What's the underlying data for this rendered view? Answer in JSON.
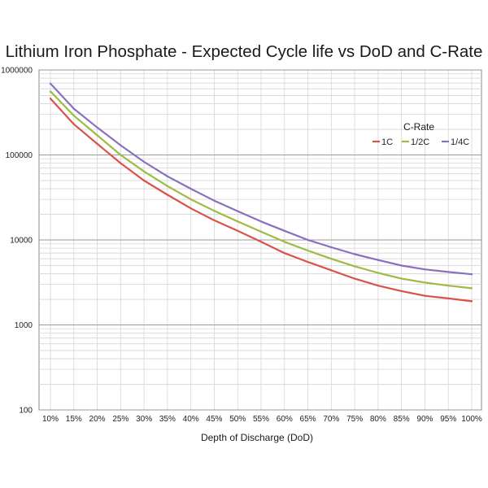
{
  "chart_data": {
    "type": "line",
    "title": "Lithium Iron Phosphate - Expected Cycle life vs DoD and C-Rate",
    "xlabel": "Depth of Discharge (DoD)",
    "ylabel": "",
    "yscale": "log",
    "ylim": [
      100,
      1000000
    ],
    "y_ticks": [
      {
        "value": 100,
        "label": "100"
      },
      {
        "value": 1000,
        "label": "1000"
      },
      {
        "value": 10000,
        "label": "10000"
      },
      {
        "value": 100000,
        "label": "100000"
      },
      {
        "value": 1000000,
        "label": "1000000"
      }
    ],
    "categories": [
      "10%",
      "15%",
      "20%",
      "25%",
      "30%",
      "35%",
      "40%",
      "45%",
      "50%",
      "55%",
      "60%",
      "65%",
      "70%",
      "75%",
      "80%",
      "85%",
      "90%",
      "95%",
      "100%"
    ],
    "legend": {
      "title": "C-Rate",
      "position": "top-right"
    },
    "grid": true,
    "series": [
      {
        "name": "1C",
        "color": "#d9534a",
        "values": [
          460000,
          230000,
          135000,
          80000,
          50000,
          34000,
          23500,
          17000,
          12800,
          9500,
          7000,
          5500,
          4400,
          3500,
          2900,
          2500,
          2200,
          2050,
          1900
        ]
      },
      {
        "name": "1/2C",
        "color": "#9dbb45",
        "values": [
          560000,
          290000,
          170000,
          100000,
          64000,
          43000,
          30000,
          22000,
          16500,
          12500,
          9500,
          7500,
          6000,
          4900,
          4100,
          3500,
          3150,
          2900,
          2700
        ]
      },
      {
        "name": "1/4C",
        "color": "#8b6fbf",
        "values": [
          690000,
          350000,
          210000,
          130000,
          83000,
          56000,
          40000,
          29000,
          21800,
          16500,
          12800,
          10000,
          8200,
          6800,
          5800,
          5000,
          4500,
          4200,
          3950
        ]
      }
    ]
  }
}
